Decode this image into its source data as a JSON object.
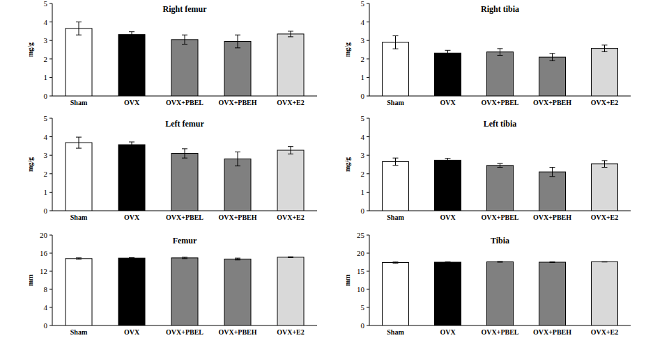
{
  "chart_data": [
    {
      "type": "bar",
      "title": "Right femur",
      "y_label": "mg/g",
      "categories": [
        "Sham",
        "OVX",
        "OVX+PBEL",
        "OVX+PBEH",
        "OVX+E2"
      ],
      "values": [
        3.65,
        3.32,
        3.05,
        2.95,
        3.35
      ],
      "errors": [
        0.35,
        0.15,
        0.25,
        0.35,
        0.15
      ],
      "colors": [
        "#ffffff",
        "#000000",
        "#808080",
        "#808080",
        "#d9d9d9"
      ],
      "ylim": [
        0,
        5
      ],
      "yticks": [
        0,
        1,
        2,
        3,
        4,
        5
      ]
    },
    {
      "type": "bar",
      "title": "Right tibia",
      "y_label": "mg/g",
      "categories": [
        "Sham",
        "OVX",
        "OVX+PBEL",
        "OVX+PBEH",
        "OVX+E2"
      ],
      "values": [
        2.9,
        2.32,
        2.38,
        2.1,
        2.57
      ],
      "errors": [
        0.35,
        0.15,
        0.18,
        0.2,
        0.18
      ],
      "colors": [
        "#ffffff",
        "#000000",
        "#808080",
        "#808080",
        "#d9d9d9"
      ],
      "ylim": [
        0,
        5
      ],
      "yticks": [
        0,
        1,
        2,
        3,
        4,
        5
      ]
    },
    {
      "type": "bar",
      "title": "Left femur",
      "y_label": "mg/g",
      "categories": [
        "Sham",
        "OVX",
        "OVX+PBEL",
        "OVX+PBEH",
        "OVX+E2"
      ],
      "values": [
        3.68,
        3.57,
        3.1,
        2.8,
        3.27
      ],
      "errors": [
        0.3,
        0.15,
        0.25,
        0.38,
        0.2
      ],
      "colors": [
        "#ffffff",
        "#000000",
        "#808080",
        "#808080",
        "#d9d9d9"
      ],
      "ylim": [
        0,
        5
      ],
      "yticks": [
        0,
        1,
        2,
        3,
        4,
        5
      ]
    },
    {
      "type": "bar",
      "title": "Left tibia",
      "y_label": "mg/g",
      "categories": [
        "Sham",
        "OVX",
        "OVX+PBEL",
        "OVX+PBEH",
        "OVX+E2"
      ],
      "values": [
        2.65,
        2.73,
        2.45,
        2.1,
        2.53
      ],
      "errors": [
        0.2,
        0.1,
        0.1,
        0.25,
        0.18
      ],
      "colors": [
        "#ffffff",
        "#000000",
        "#808080",
        "#808080",
        "#d9d9d9"
      ],
      "ylim": [
        0,
        5
      ],
      "yticks": [
        0,
        1,
        2,
        3,
        4,
        5
      ]
    },
    {
      "type": "bar",
      "title": "Femur",
      "y_label": "mm",
      "categories": [
        "Sham",
        "OVX",
        "OVX+PBEL",
        "OVX+PBEH",
        "OVX+E2"
      ],
      "values": [
        14.8,
        14.9,
        14.95,
        14.7,
        15.1
      ],
      "errors": [
        0.15,
        0.1,
        0.15,
        0.2,
        0.1
      ],
      "colors": [
        "#ffffff",
        "#000000",
        "#808080",
        "#808080",
        "#d9d9d9"
      ],
      "ylim": [
        0,
        20
      ],
      "yticks": [
        0,
        4,
        8,
        12,
        16,
        20
      ]
    },
    {
      "type": "bar",
      "title": "Tibia",
      "y_label": "mm",
      "categories": [
        "Sham",
        "OVX",
        "OVX+PBEL",
        "OVX+PBEH",
        "OVX+E2"
      ],
      "values": [
        17.4,
        17.5,
        17.6,
        17.5,
        17.6
      ],
      "errors": [
        0.15,
        0.1,
        0.1,
        0.1,
        0.05
      ],
      "colors": [
        "#ffffff",
        "#000000",
        "#808080",
        "#808080",
        "#d9d9d9"
      ],
      "ylim": [
        0,
        25
      ],
      "yticks": [
        0,
        5,
        10,
        15,
        20,
        25
      ]
    }
  ]
}
